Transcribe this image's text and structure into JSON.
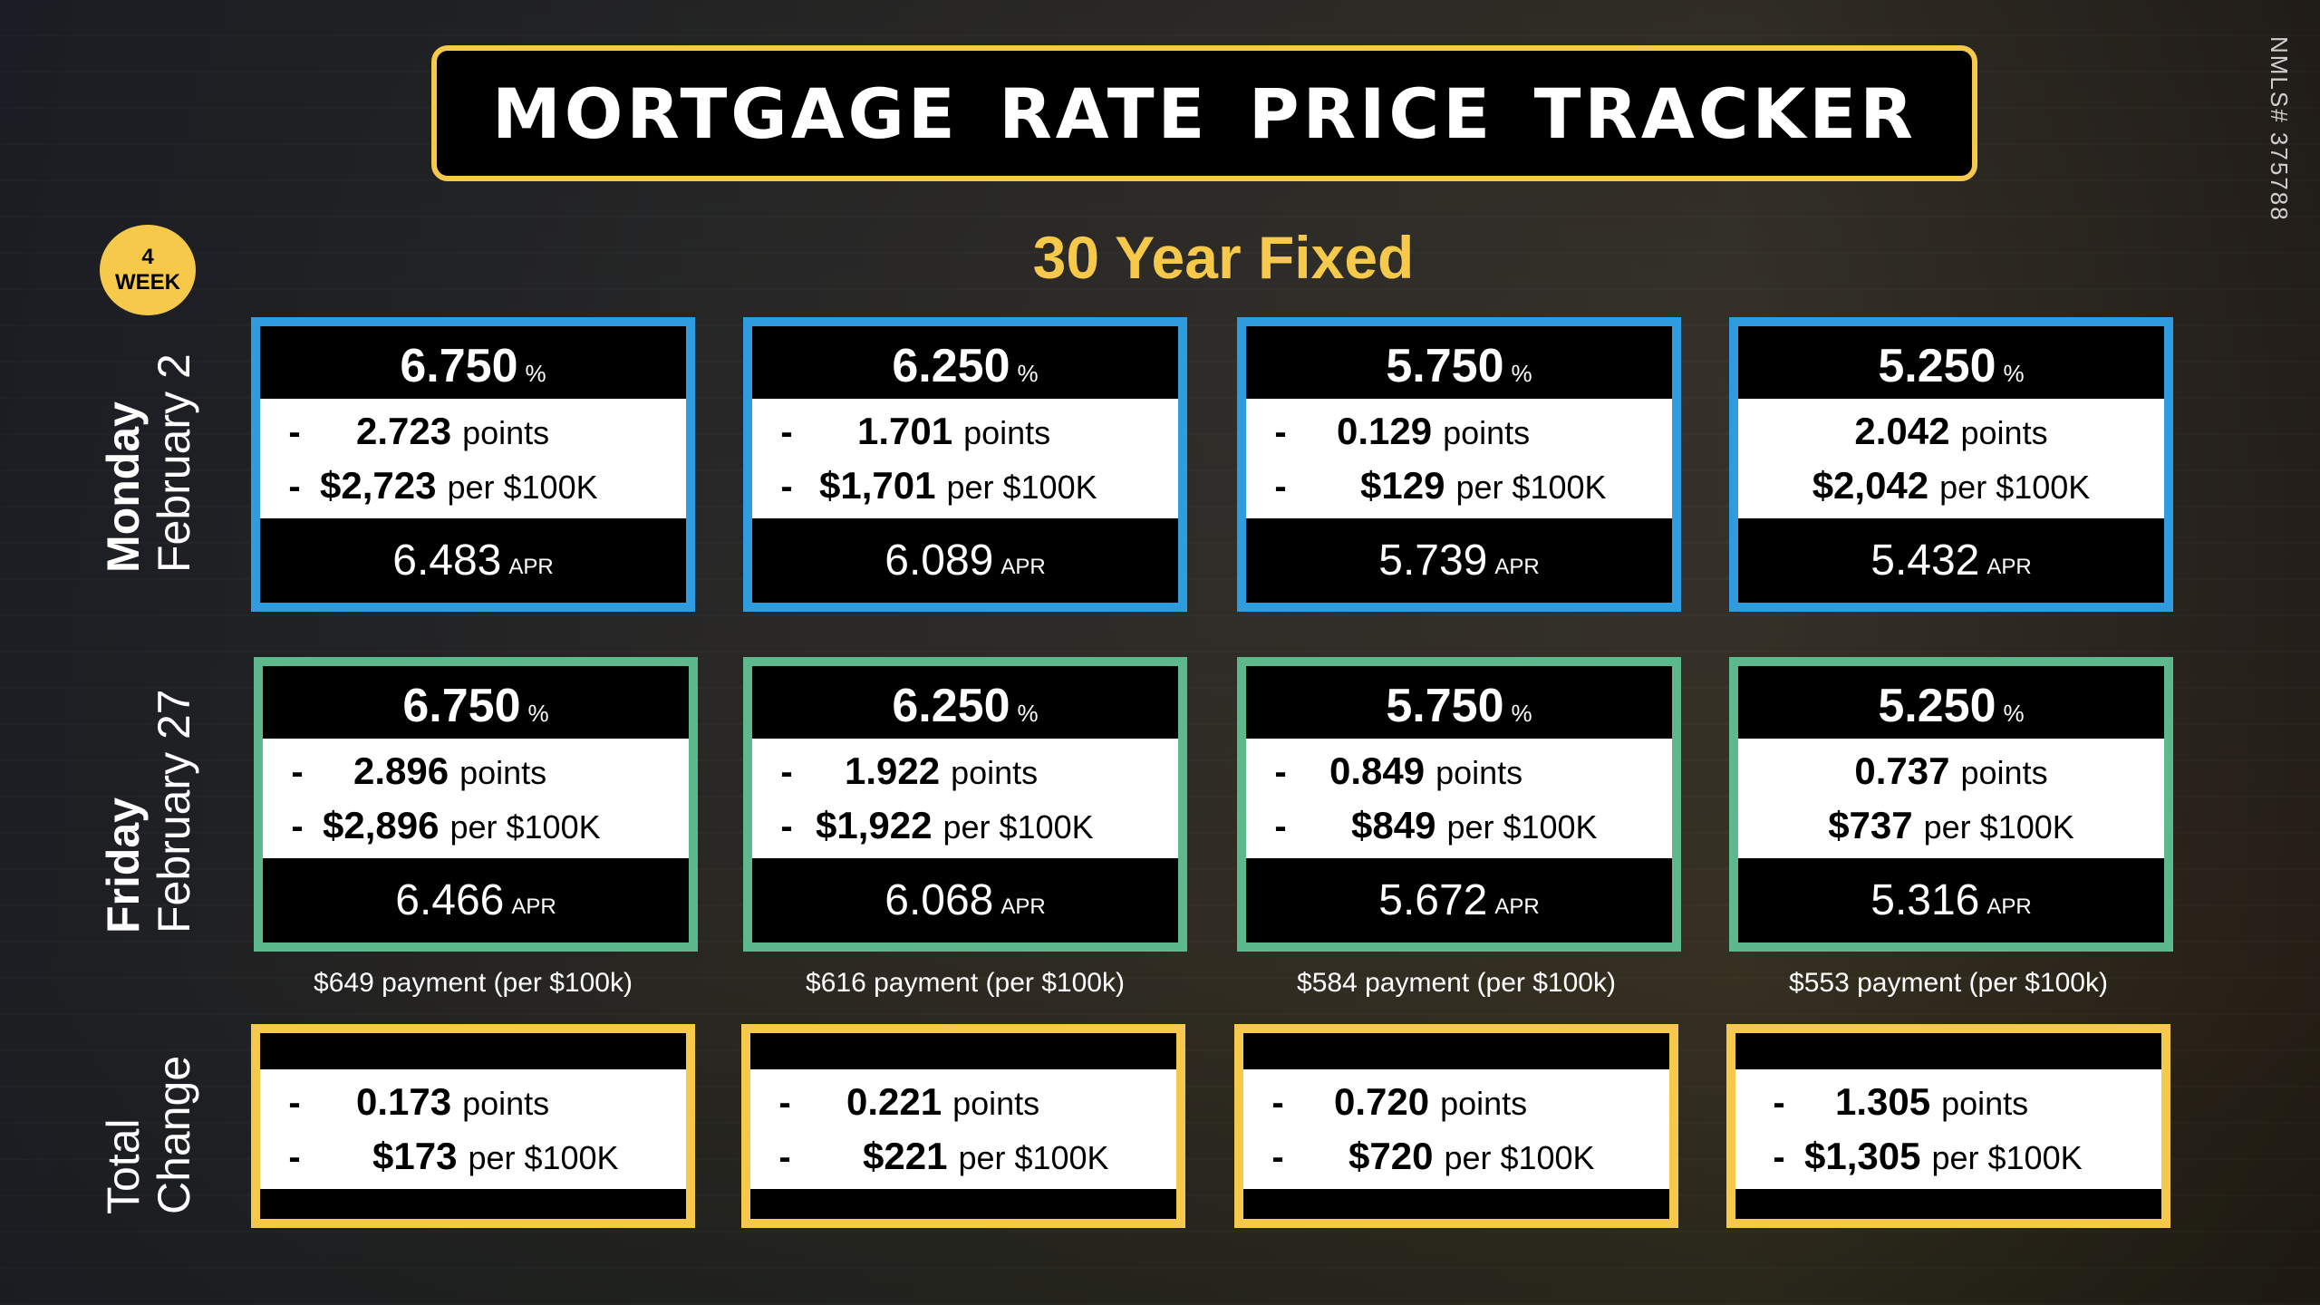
{
  "title": "MORTGAGE RATE PRICE TRACKER",
  "nmls": "NMLS# 375788",
  "badge": {
    "num": "4",
    "label": "WEEK"
  },
  "subtitle": "30 Year Fixed",
  "rows": {
    "monday": {
      "day": "Monday",
      "date": "February 2"
    },
    "friday": {
      "day": "Friday",
      "date": "February 27"
    },
    "total": {
      "line1": "Total",
      "line2": "Change"
    }
  },
  "monday_cards": [
    {
      "rate": "6.750",
      "pct": "%",
      "dash1": "-",
      "points": "2.723",
      "points_unit": "points",
      "dash2": "-",
      "cost": "$2,723",
      "cost_unit": "per $100K",
      "apr": "6.483",
      "apr_label": "APR"
    },
    {
      "rate": "6.250",
      "pct": "%",
      "dash1": "-",
      "points": "1.701",
      "points_unit": "points",
      "dash2": "-",
      "cost": "$1,701",
      "cost_unit": "per $100K",
      "apr": "6.089",
      "apr_label": "APR"
    },
    {
      "rate": "5.750",
      "pct": "%",
      "dash1": "-",
      "points": "0.129",
      "points_unit": "points",
      "dash2": "-",
      "cost": "$129",
      "cost_unit": "per $100K",
      "apr": "5.739",
      "apr_label": "APR"
    },
    {
      "rate": "5.250",
      "pct": "%",
      "dash1": "",
      "points": "2.042",
      "points_unit": "points",
      "dash2": "",
      "cost": "$2,042",
      "cost_unit": "per $100K",
      "apr": "5.432",
      "apr_label": "APR"
    }
  ],
  "friday_cards": [
    {
      "rate": "6.750",
      "pct": "%",
      "dash1": "-",
      "points": "2.896",
      "points_unit": "points",
      "dash2": "-",
      "cost": "$2,896",
      "cost_unit": "per $100K",
      "apr": "6.466",
      "apr_label": "APR",
      "payment": "$649 payment (per $100k)"
    },
    {
      "rate": "6.250",
      "pct": "%",
      "dash1": "-",
      "points": "1.922",
      "points_unit": "points",
      "dash2": "-",
      "cost": "$1,922",
      "cost_unit": "per $100K",
      "apr": "6.068",
      "apr_label": "APR",
      "payment": "$616 payment (per $100k)"
    },
    {
      "rate": "5.750",
      "pct": "%",
      "dash1": "-",
      "points": "0.849",
      "points_unit": "points",
      "dash2": "-",
      "cost": "$849",
      "cost_unit": "per $100K",
      "apr": "5.672",
      "apr_label": "APR",
      "payment": "$584 payment (per $100k)"
    },
    {
      "rate": "5.250",
      "pct": "%",
      "dash1": "",
      "points": "0.737",
      "points_unit": "points",
      "dash2": "",
      "cost": "$737",
      "cost_unit": "per $100K",
      "apr": "5.316",
      "apr_label": "APR",
      "payment": "$553 payment (per $100k)"
    }
  ],
  "total_cards": [
    {
      "dash1": "-",
      "points": "0.173",
      "points_unit": "points",
      "dash2": "-",
      "cost": "$173",
      "cost_unit": "per $100K"
    },
    {
      "dash1": "-",
      "points": "0.221",
      "points_unit": "points",
      "dash2": "-",
      "cost": "$221",
      "cost_unit": "per $100K"
    },
    {
      "dash1": "-",
      "points": "0.720",
      "points_unit": "points",
      "dash2": "-",
      "cost": "$720",
      "cost_unit": "per $100K"
    },
    {
      "dash1": "-",
      "points": "1.305",
      "points_unit": "points",
      "dash2": "-",
      "cost": "$1,305",
      "cost_unit": "per $100K"
    }
  ],
  "colors": {
    "accent": "#f6c94a",
    "blue": "#2f9ce0",
    "green": "#5db88e"
  }
}
